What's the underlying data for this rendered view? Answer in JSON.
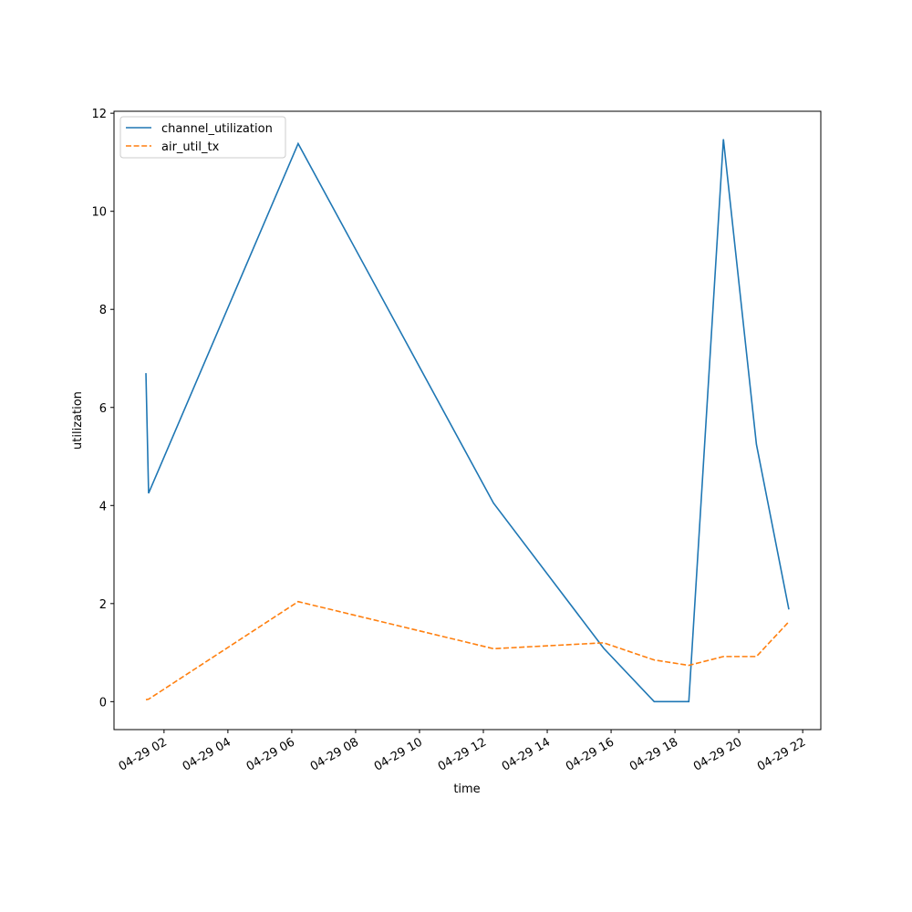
{
  "chart_data": {
    "type": "line",
    "x_label": "time",
    "y_label": "utilization",
    "x": [
      "04-29 01:26",
      "04-29 01:31",
      "04-29 06:12",
      "04-29 12:19",
      "04-29 15:46",
      "04-29 17:21",
      "04-29 18:26",
      "04-29 19:31",
      "04-29 20:33",
      "04-29 21:34"
    ],
    "series": [
      {
        "name": "channel_utilization",
        "color": "#1f77b4",
        "dash": "solid",
        "values": [
          6.7,
          4.25,
          11.38,
          4.05,
          1.09,
          0,
          0,
          11.47,
          5.25,
          1.88
        ]
      },
      {
        "name": "air_util_tx",
        "color": "#ff7f0e",
        "dash": "dashed",
        "values": [
          0.04,
          0.05,
          2.04,
          1.08,
          1.2,
          0.85,
          0.74,
          0.92,
          0.92,
          1.63
        ]
      }
    ],
    "xlim": [
      "04-29 00:26",
      "04-29 22:34"
    ],
    "xticks": [
      "04-29 02",
      "04-29 04",
      "04-29 06",
      "04-29 08",
      "04-29 10",
      "04-29 12",
      "04-29 14",
      "04-29 16",
      "04-29 18",
      "04-29 20",
      "04-29 22"
    ],
    "ylim": [
      -0.57,
      12.04
    ],
    "yticks": [
      0,
      2,
      4,
      6,
      8,
      10,
      12
    ],
    "legend": "upper left",
    "grid": false
  }
}
